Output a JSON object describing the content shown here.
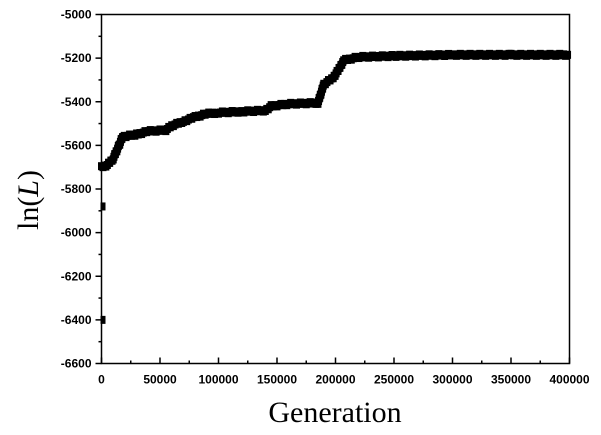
{
  "chart_data": {
    "type": "scatter",
    "title": "",
    "xlabel": "Generation",
    "ylabel": "ln(L)",
    "ylabel_parts": {
      "prefix": "ln(",
      "italic": "L",
      "suffix": ")"
    },
    "xlim": [
      0,
      400000
    ],
    "ylim": [
      -6600,
      -5000
    ],
    "grid": false,
    "legend": null,
    "x_ticks": [
      0,
      50000,
      100000,
      150000,
      200000,
      250000,
      300000,
      350000,
      400000
    ],
    "x_tick_labels": [
      "0",
      "50000",
      "100000",
      "150000",
      "200000",
      "250000",
      "300000",
      "350000",
      "400000"
    ],
    "y_ticks": [
      -5000,
      -5200,
      -5400,
      -5600,
      -5800,
      -6000,
      -6200,
      -6400,
      -6600
    ],
    "y_tick_labels": [
      "-5000",
      "-5200",
      "-5400",
      "-5600",
      "-5800",
      "-6000",
      "-6200",
      "-6400",
      "-6600"
    ],
    "marker": "square",
    "color": "#000000",
    "series": [
      {
        "name": "ln(L) trace",
        "x": [
          0,
          5000,
          10000,
          15000,
          18000,
          30000,
          40000,
          55000,
          60000,
          70000,
          80000,
          90000,
          100000,
          120000,
          140000,
          145000,
          160000,
          185000,
          190000,
          198000,
          203000,
          207000,
          220000,
          250000,
          300000,
          350000,
          400000
        ],
        "y": [
          -5700,
          -5690,
          -5660,
          -5600,
          -5560,
          -5550,
          -5535,
          -5530,
          -5510,
          -5490,
          -5470,
          -5455,
          -5450,
          -5445,
          -5440,
          -5420,
          -5410,
          -5405,
          -5320,
          -5290,
          -5250,
          -5210,
          -5195,
          -5190,
          -5185,
          -5185,
          -5185
        ]
      },
      {
        "name": "early outliers",
        "x": [
          0,
          0
        ],
        "y": [
          -5880,
          -6400
        ]
      }
    ]
  }
}
